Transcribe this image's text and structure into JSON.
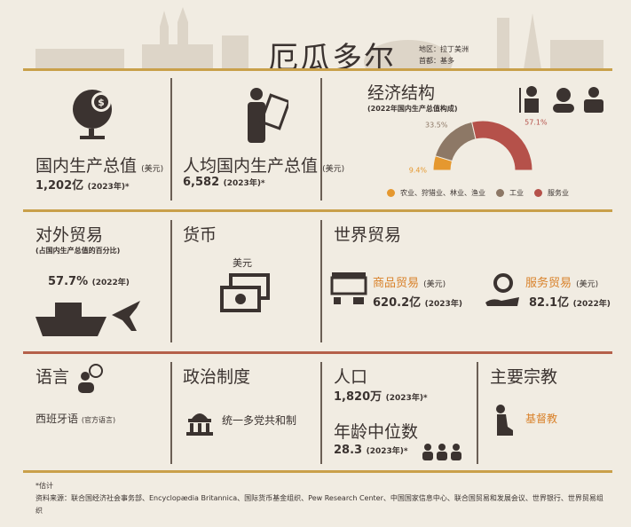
{
  "header": {
    "title": "厄瓜多尔",
    "region": "地区：拉丁美洲",
    "capital": "首都：基多"
  },
  "gdp": {
    "label": "国内生产总值",
    "unit": "(美元)",
    "value": "1,202亿",
    "year": "(2023年)*"
  },
  "gdp_per_capita": {
    "label": "人均国内生产总值",
    "unit": "(美元)",
    "value": "6,582",
    "year": "(2023年)*"
  },
  "economy": {
    "title": "经济结构",
    "subtitle": "(2022年国内生产总值构成)",
    "chart_data": {
      "type": "pie",
      "variant": "half-donut",
      "categories": [
        "农业、狩猎业、林业、渔业",
        "工业",
        "服务业"
      ],
      "values": [
        9.4,
        33.5,
        57.1
      ],
      "labels": [
        "9.4%",
        "33.5%",
        "57.1%"
      ],
      "colors": [
        "#e5982f",
        "#8d7866",
        "#b5514a"
      ],
      "legend_position": "bottom"
    }
  },
  "trade": {
    "label": "对外贸易",
    "sub": "(占国内生产总值的百分比)",
    "value": "57.7%",
    "year": "(2022年)"
  },
  "currency": {
    "label": "货币",
    "value": "美元"
  },
  "world_trade": {
    "label": "世界贸易",
    "goods_label": "商品贸易",
    "goods_unit": "(美元)",
    "goods_value": "620.2亿",
    "goods_year": "(2023年)",
    "services_label": "服务贸易",
    "services_unit": "(美元)",
    "services_value": "82.1亿",
    "services_year": "(2022年)"
  },
  "language": {
    "label": "语言",
    "value": "西班牙语",
    "note": "(官方语言)"
  },
  "politics": {
    "label": "政治制度",
    "value": "统一多党共和制"
  },
  "population": {
    "label": "人口",
    "value": "1,820万",
    "year": "(2023年)*",
    "median_label": "年龄中位数",
    "median_value": "28.3",
    "median_year": "(2023年)*"
  },
  "religion": {
    "label": "主要宗教",
    "value": "基督教"
  },
  "footer": {
    "note": "*估计",
    "sources": "资料来源：联合国经济社会事务部、Encyclopædia Britannica、国际货币基金组织、Pew Research Center、中国国家信息中心、联合国贸易和发展会议、世界银行、世界贸易组织"
  },
  "colors": {
    "gold": "#c9a04a",
    "red_line": "#b5604a",
    "accent": "#d9822b",
    "text": "#3b3330"
  }
}
